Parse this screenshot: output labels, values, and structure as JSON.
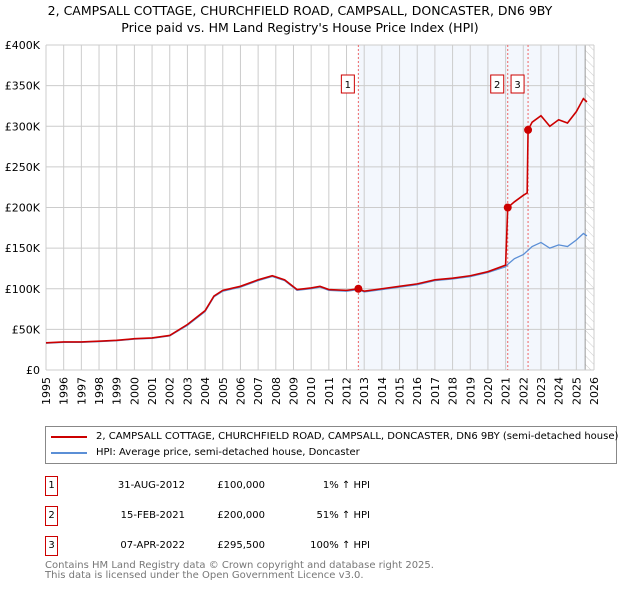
{
  "chart_data": {
    "type": "line",
    "title": "2, CAMPSALL COTTAGE, CHURCHFIELD ROAD, CAMPSALL, DONCASTER, DN6 9BY",
    "subtitle": "Price paid vs. HM Land Registry's House Price Index (HPI)",
    "xlim": [
      1995,
      2026
    ],
    "ylim": [
      0,
      400000
    ],
    "yticks": [
      0,
      50000,
      100000,
      150000,
      200000,
      250000,
      300000,
      350000,
      400000
    ],
    "ytick_labels": [
      "£0",
      "£50K",
      "£100K",
      "£150K",
      "£200K",
      "£250K",
      "£300K",
      "£350K",
      "£400K"
    ],
    "xticks": [
      "1995",
      "1996",
      "1997",
      "1998",
      "1999",
      "2000",
      "2001",
      "2002",
      "2003",
      "2004",
      "2005",
      "2006",
      "2007",
      "2008",
      "2009",
      "2010",
      "2011",
      "2012",
      "2013",
      "2014",
      "2015",
      "2016",
      "2017",
      "2018",
      "2019",
      "2020",
      "2021",
      "2022",
      "2023",
      "2024",
      "2025",
      "2026"
    ],
    "grid": true,
    "shaded_from": 2012.67,
    "hatched_from": 2025.5,
    "series": [
      {
        "name": "2, CAMPSALL COTTAGE, CHURCHFIELD ROAD, CAMPSALL, DONCASTER, DN6 9BY (semi-detached house)",
        "color": "#cc0000",
        "x": [
          1995,
          1996,
          1997,
          1998,
          1999,
          2000,
          2001,
          2002,
          2003,
          2004,
          2004.5,
          2005,
          2006,
          2007,
          2007.8,
          2008.5,
          2009.2,
          2010,
          2010.5,
          2011,
          2012,
          2012.67,
          2013,
          2014,
          2015,
          2016,
          2017,
          2018,
          2019,
          2020,
          2021,
          2021.12,
          2021.5,
          2022,
          2022.22,
          2022.27,
          2022.5,
          2023,
          2023.5,
          2024,
          2024.5,
          2025,
          2025.4,
          2025.6
        ],
        "y": [
          33500,
          34500,
          34500,
          35500,
          36500,
          38500,
          39500,
          42500,
          56000,
          73000,
          91000,
          98000,
          103000,
          111000,
          116000,
          111000,
          99000,
          101000,
          103000,
          99000,
          98000,
          100000,
          97000,
          100000,
          103000,
          106000,
          111000,
          113000,
          116000,
          121000,
          129000,
          200000,
          207000,
          215000,
          218000,
          295500,
          305000,
          313000,
          300000,
          308000,
          304000,
          318000,
          334000,
          330000
        ]
      },
      {
        "name": "HPI: Average price, semi-detached house, Doncaster",
        "color": "#5b8fd6",
        "x": [
          1995,
          1996,
          1997,
          1998,
          1999,
          2000,
          2001,
          2002,
          2003,
          2004,
          2004.5,
          2005,
          2006,
          2007,
          2007.8,
          2008.5,
          2009.2,
          2010,
          2010.5,
          2011,
          2012,
          2012.67,
          2013,
          2014,
          2015,
          2016,
          2017,
          2018,
          2019,
          2020,
          2021,
          2021.12,
          2021.5,
          2022,
          2022.5,
          2023,
          2023.5,
          2024,
          2024.5,
          2025,
          2025.4,
          2025.6
        ],
        "y": [
          33000,
          34000,
          34000,
          35000,
          36000,
          38000,
          39000,
          42000,
          55000,
          72000,
          90000,
          97000,
          102000,
          110000,
          115000,
          110000,
          98000,
          100000,
          102000,
          98000,
          97000,
          99000,
          96000,
          99000,
          102000,
          105000,
          110000,
          112000,
          115000,
          120000,
          127000,
          130000,
          137000,
          142000,
          152000,
          157000,
          150000,
          154000,
          152000,
          160000,
          168000,
          165000
        ]
      }
    ],
    "sales": [
      {
        "label": "1",
        "x": 2012.67,
        "y": 100000,
        "date": "31-AUG-2012",
        "price": "£100,000",
        "hpi": "1% ↑ HPI"
      },
      {
        "label": "2",
        "x": 2021.12,
        "y": 200000,
        "date": "15-FEB-2021",
        "price": "£200,000",
        "hpi": "51% ↑ HPI"
      },
      {
        "label": "3",
        "x": 2022.27,
        "y": 295500,
        "date": "07-APR-2022",
        "price": "£295,500",
        "hpi": "100% ↑ HPI"
      }
    ]
  },
  "footer": {
    "line1": "Contains HM Land Registry data © Crown copyright and database right 2025.",
    "line2": "This data is licensed under the Open Government Licence v3.0."
  }
}
